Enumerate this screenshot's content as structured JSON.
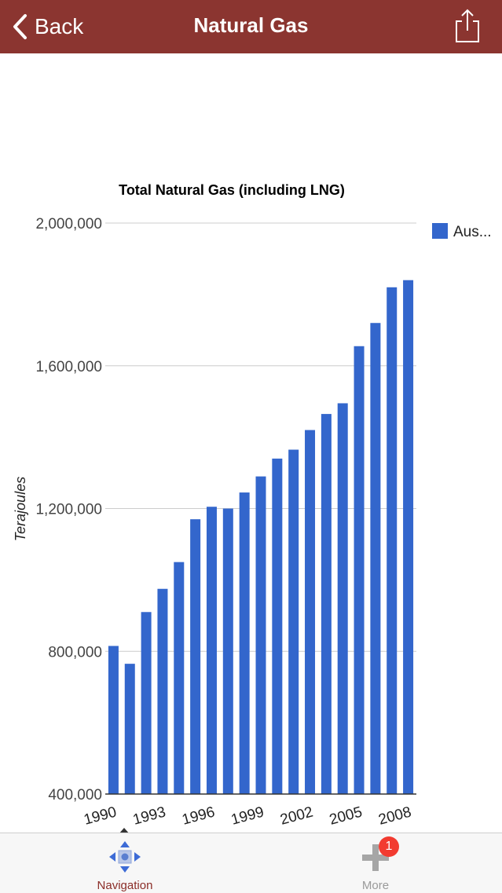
{
  "navbar": {
    "back_label": "Back",
    "title": "Natural Gas",
    "share_icon": "share-icon",
    "background": "#8b3530"
  },
  "chart_data": {
    "type": "bar",
    "title": "Total Natural Gas (including LNG)",
    "ylabel": "Terajoules",
    "xlabel": "",
    "ylim": [
      400000,
      2000000
    ],
    "yticks": [
      "400,000",
      "800,000",
      "1,200,000",
      "1,600,000",
      "2,000,000"
    ],
    "ytick_values": [
      400000,
      800000,
      1200000,
      1600000,
      2000000
    ],
    "categories": [
      "1990",
      "1991",
      "1992",
      "1993",
      "1994",
      "1995",
      "1996",
      "1997",
      "1998",
      "1999",
      "2000",
      "2001",
      "2002",
      "2003",
      "2004",
      "2005",
      "2006",
      "2007",
      "2008"
    ],
    "xtick_labels": [
      "1990",
      "1993",
      "1996",
      "1999",
      "2002",
      "2005",
      "2008"
    ],
    "series": [
      {
        "name": "Aus...",
        "color": "#3366cc",
        "values": [
          815000,
          765000,
          910000,
          975000,
          1050000,
          1170000,
          1205000,
          1200000,
          1245000,
          1290000,
          1340000,
          1365000,
          1420000,
          1465000,
          1495000,
          1655000,
          1720000,
          1820000,
          1840000
        ]
      }
    ],
    "legend_position": "top-right",
    "grid": true
  },
  "tabbar": {
    "items": [
      {
        "label": "Navigation",
        "icon": "navigation-icon",
        "active": true
      },
      {
        "label": "More",
        "icon": "plus-icon",
        "badge": "1"
      }
    ]
  }
}
